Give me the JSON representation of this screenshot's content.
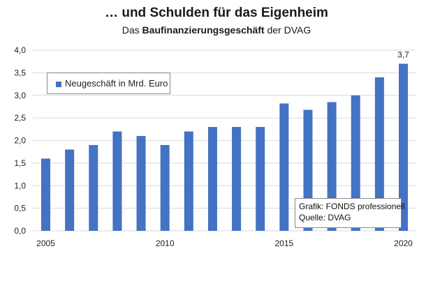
{
  "header": {
    "title": "… und Schulden für das Eigenheim",
    "subtitle_pre": "Das ",
    "subtitle_bold": "Baufinanzierungsgeschäft",
    "subtitle_post": " der DVAG"
  },
  "source": {
    "line1": "Grafik: FONDS professionell",
    "line2": "Quelle: DVAG"
  },
  "colors": {
    "bar": "#4472C4",
    "grid": "#d9d9d9"
  },
  "chart_data": {
    "type": "bar",
    "title": "… und Schulden für das Eigenheim",
    "subtitle": "Das Baufinanzierungsgeschäft der DVAG",
    "categories": [
      2005,
      2006,
      2007,
      2008,
      2009,
      2010,
      2011,
      2012,
      2013,
      2014,
      2015,
      2016,
      2017,
      2018,
      2019,
      2020
    ],
    "series": [
      {
        "name": "Neugeschäft in Mrd. Euro",
        "values": [
          1.6,
          1.8,
          1.9,
          2.2,
          2.1,
          1.9,
          2.2,
          2.3,
          2.3,
          2.3,
          2.82,
          2.68,
          2.85,
          3.0,
          3.4,
          3.7
        ]
      }
    ],
    "x_tick_labels": [
      "2005",
      "2010",
      "2015",
      "2020"
    ],
    "y_tick_labels": [
      "0,0",
      "0,5",
      "1,0",
      "1,5",
      "2,0",
      "2,5",
      "3,0",
      "3,5",
      "4,0"
    ],
    "ylim": [
      0,
      4.0
    ],
    "y_step": 0.5,
    "data_labels": [
      {
        "category": 2020,
        "text": "3,7"
      }
    ],
    "grid": true,
    "legend_position": "top-left",
    "xlabel": "",
    "ylabel": ""
  }
}
